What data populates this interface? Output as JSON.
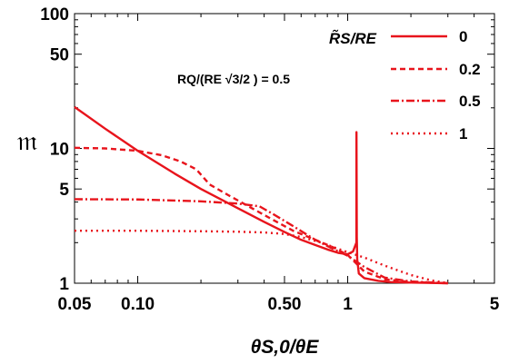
{
  "chart_data": {
    "type": "line",
    "xscale": "log",
    "yscale": "log",
    "xlim": [
      0.05,
      5
    ],
    "ylim": [
      1,
      100
    ],
    "xlabel": "θS,0/θE",
    "ylabel": "𝔪",
    "xticks": [
      {
        "value": 0.05,
        "label": "0.05"
      },
      {
        "value": 0.1,
        "label": "0.10"
      },
      {
        "value": 0.5,
        "label": "0.50"
      },
      {
        "value": 1,
        "label": "1"
      },
      {
        "value": 5,
        "label": "5"
      }
    ],
    "yticks": [
      {
        "value": 1,
        "label": "1"
      },
      {
        "value": 5,
        "label": "5"
      },
      {
        "value": 10,
        "label": "10"
      },
      {
        "value": 50,
        "label": "50"
      },
      {
        "value": 100,
        "label": "100"
      }
    ],
    "annotation": "RQ/(RE √3/2 ) = 0.5",
    "legend_title": "R̃S/RE",
    "legend_position": "top-right",
    "color": "#e8141c",
    "grid": false,
    "series": [
      {
        "name": "0",
        "dash": "solid",
        "x": [
          0.05,
          0.07,
          0.1,
          0.15,
          0.2,
          0.3,
          0.4,
          0.5,
          0.6,
          0.7,
          0.8,
          0.9,
          1.0,
          1.06,
          1.1,
          1.101,
          1.105,
          1.11,
          1.13,
          1.2,
          1.4,
          1.6,
          2.0,
          2.5,
          3.0
        ],
        "y": [
          20.3,
          14.0,
          9.6,
          6.5,
          5.0,
          3.6,
          2.85,
          2.4,
          2.1,
          1.92,
          1.78,
          1.68,
          1.64,
          1.72,
          2.0,
          13.2,
          2.2,
          1.5,
          1.18,
          1.09,
          1.04,
          1.02,
          1.01,
          1.005,
          1.0
        ]
      },
      {
        "name": "0.2",
        "dash": "6,4",
        "x": [
          0.05,
          0.07,
          0.1,
          0.13,
          0.16,
          0.19,
          0.22,
          0.27,
          0.35,
          0.45,
          0.55,
          0.7,
          0.85,
          1.0,
          1.2,
          1.5,
          2.0,
          3.0
        ],
        "y": [
          10.1,
          10.0,
          9.6,
          8.9,
          8.0,
          7.0,
          5.4,
          4.5,
          3.6,
          2.9,
          2.45,
          2.1,
          1.85,
          1.62,
          1.22,
          1.07,
          1.02,
          1.0
        ]
      },
      {
        "name": "0.5",
        "dash": "9,3,2,3",
        "x": [
          0.05,
          0.1,
          0.2,
          0.3,
          0.38,
          0.45,
          0.55,
          0.7,
          0.85,
          1.0,
          1.2,
          1.5,
          2.0,
          3.0
        ],
        "y": [
          4.2,
          4.18,
          4.05,
          3.9,
          3.72,
          3.2,
          2.65,
          2.1,
          1.8,
          1.6,
          1.32,
          1.1,
          1.03,
          1.0
        ]
      },
      {
        "name": "1",
        "dash": "2,4",
        "x": [
          0.05,
          0.1,
          0.2,
          0.3,
          0.4,
          0.5,
          0.6,
          0.75,
          0.9,
          1.0,
          1.2,
          1.5,
          2.0,
          2.5,
          3.0
        ],
        "y": [
          2.45,
          2.45,
          2.43,
          2.41,
          2.38,
          2.32,
          2.2,
          2.0,
          1.8,
          1.7,
          1.55,
          1.35,
          1.15,
          1.05,
          1.0
        ]
      }
    ]
  }
}
